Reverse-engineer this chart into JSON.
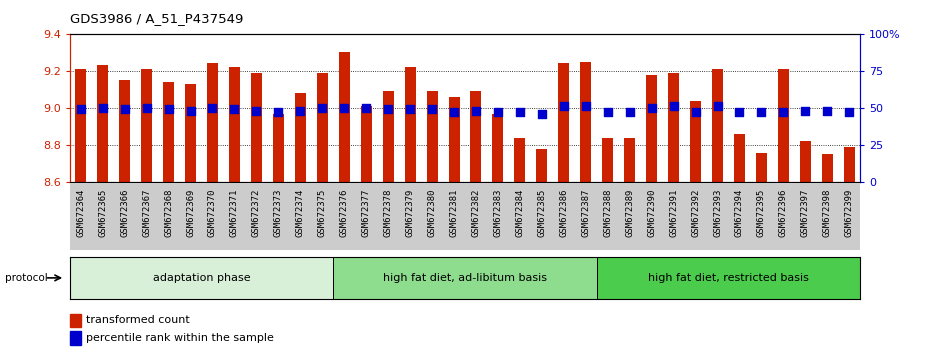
{
  "title": "GDS3986 / A_51_P437549",
  "samples": [
    "GSM672364",
    "GSM672365",
    "GSM672366",
    "GSM672367",
    "GSM672368",
    "GSM672369",
    "GSM672370",
    "GSM672371",
    "GSM672372",
    "GSM672373",
    "GSM672374",
    "GSM672375",
    "GSM672376",
    "GSM672377",
    "GSM672378",
    "GSM672379",
    "GSM672380",
    "GSM672381",
    "GSM672382",
    "GSM672383",
    "GSM672384",
    "GSM672385",
    "GSM672386",
    "GSM672387",
    "GSM672388",
    "GSM672389",
    "GSM672390",
    "GSM672391",
    "GSM672392",
    "GSM672393",
    "GSM672394",
    "GSM672395",
    "GSM672396",
    "GSM672397",
    "GSM672398",
    "GSM672399"
  ],
  "transformed_count": [
    9.21,
    9.23,
    9.15,
    9.21,
    9.14,
    9.13,
    9.24,
    9.22,
    9.19,
    8.97,
    9.08,
    9.19,
    9.3,
    9.01,
    9.09,
    9.22,
    9.09,
    9.06,
    9.09,
    8.97,
    8.84,
    8.78,
    9.24,
    9.25,
    8.84,
    8.84,
    9.18,
    9.19,
    9.04,
    9.21,
    8.86,
    8.76,
    9.21,
    8.82,
    8.75,
    8.79
  ],
  "percentile_rank": [
    49,
    50,
    49,
    50,
    49,
    48,
    50,
    49,
    48,
    47,
    48,
    50,
    50,
    50,
    49,
    49,
    49,
    47,
    48,
    47,
    47,
    46,
    51,
    51,
    47,
    47,
    50,
    51,
    47,
    51,
    47,
    47,
    47,
    48,
    48,
    47
  ],
  "ylim_left": [
    8.6,
    9.4
  ],
  "ylim_right": [
    0,
    100
  ],
  "yticks_left": [
    8.6,
    8.8,
    9.0,
    9.2,
    9.4
  ],
  "yticks_right": [
    0,
    25,
    50,
    75,
    100
  ],
  "ytick_labels_right": [
    "0",
    "25",
    "50",
    "75",
    "100%"
  ],
  "bar_color": "#cc2200",
  "dot_color": "#0000cc",
  "bar_width": 0.5,
  "groups": [
    {
      "label": "adaptation phase",
      "start": 0,
      "end": 12,
      "color": "#d8f0d8"
    },
    {
      "label": "high fat diet, ad-libitum basis",
      "start": 12,
      "end": 24,
      "color": "#8edd8e"
    },
    {
      "label": "high fat diet, restricted basis",
      "start": 24,
      "end": 36,
      "color": "#4ccc4c"
    }
  ],
  "protocol_label": "protocol",
  "legend_items": [
    {
      "color": "#cc2200",
      "label": "transformed count"
    },
    {
      "color": "#0000cc",
      "label": "percentile rank within the sample"
    }
  ],
  "base_value": 8.6,
  "dot_size": 30,
  "xlabel_bg_color": "#cccccc",
  "tick_label_fontsize": 6.5
}
